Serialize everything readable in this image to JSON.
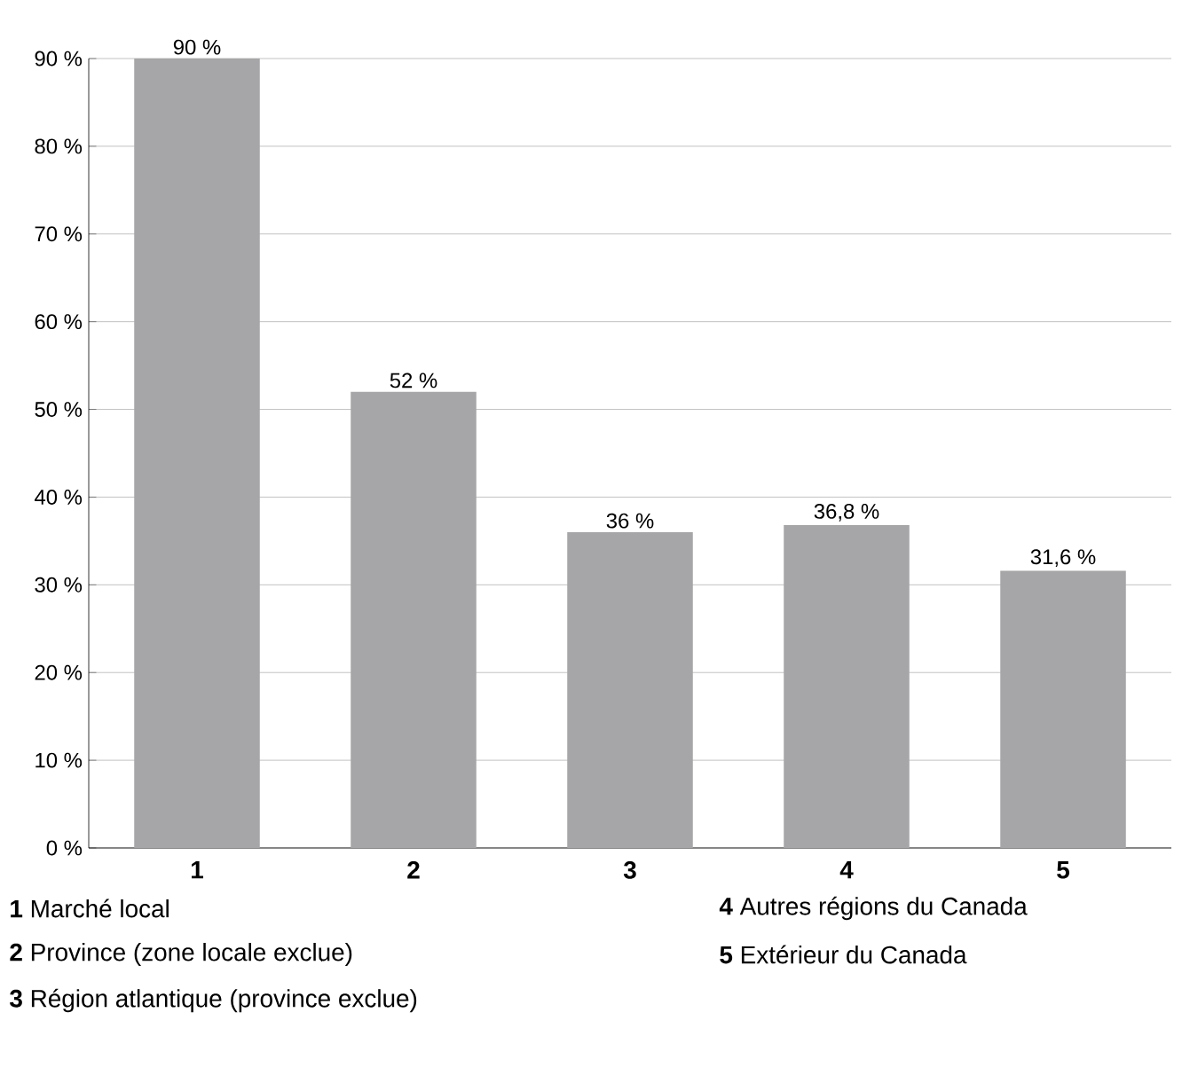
{
  "chart_data": {
    "type": "bar",
    "categories": [
      "1",
      "2",
      "3",
      "4",
      "5"
    ],
    "values": [
      90,
      52,
      36,
      36.8,
      31.6
    ],
    "value_labels": [
      "90 %",
      "52 %",
      "36 %",
      "36,8 %",
      "31,6 %"
    ],
    "color": "#a6a6a8",
    "ylim": [
      0,
      90
    ],
    "yticks": [
      {
        "value": 0,
        "label": "0 %"
      },
      {
        "value": 10,
        "label": "10 %"
      },
      {
        "value": 20,
        "label": "20 %"
      },
      {
        "value": 30,
        "label": "30 %"
      },
      {
        "value": 40,
        "label": "40 %"
      },
      {
        "value": 50,
        "label": "50 %"
      },
      {
        "value": 60,
        "label": "60 %"
      },
      {
        "value": 70,
        "label": "70 %"
      },
      {
        "value": 80,
        "label": "80 %"
      },
      {
        "value": 90,
        "label": "90 %"
      }
    ],
    "grid": "y",
    "annotations": [
      "**1** Marché local",
      "**2** Province (zone locale exclue)",
      "**3** Région atlantique (province exclue)",
      "**4** Autres régions du Canada",
      "**5** Extérieur du Canada"
    ]
  }
}
